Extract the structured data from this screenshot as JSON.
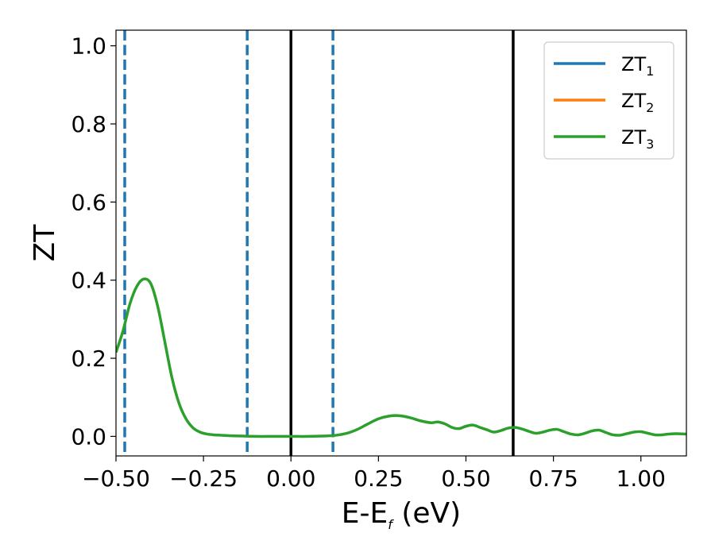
{
  "chart_data": {
    "type": "line",
    "xlabel_main": "E-E",
    "xlabel_sub": "f",
    "xlabel_unit": " (eV)",
    "ylabel": "ZT",
    "xlim": [
      -0.5,
      1.13
    ],
    "ylim": [
      -0.05,
      1.04
    ],
    "x_ticks": [
      -0.5,
      -0.25,
      0.0,
      0.25,
      0.5,
      0.75,
      1.0
    ],
    "x_tick_labels": [
      "−0.50",
      "−0.25",
      "0.00",
      "0.25",
      "0.50",
      "0.75",
      "1.00"
    ],
    "y_ticks": [
      0.0,
      0.2,
      0.4,
      0.6,
      0.8,
      1.0
    ],
    "y_tick_labels": [
      "0.0",
      "0.2",
      "0.4",
      "0.6",
      "0.8",
      "1.0"
    ],
    "grid": false,
    "legend_position": "top-right",
    "legend": [
      {
        "base": "ZT",
        "sub": "1",
        "color": "#1f77b4"
      },
      {
        "base": "ZT",
        "sub": "2",
        "color": "#ff7f0e"
      },
      {
        "base": "ZT",
        "sub": "3",
        "color": "#2ca02c"
      }
    ],
    "vlines_dashed": {
      "color": "#1f77b4",
      "x": [
        -0.475,
        -0.125,
        0.12
      ]
    },
    "vlines_solid": {
      "color": "#000000",
      "x": [
        0.0,
        0.635
      ]
    },
    "series": [
      {
        "color": "#2ca02c",
        "x": [
          -0.5,
          -0.48,
          -0.46,
          -0.44,
          -0.42,
          -0.4,
          -0.38,
          -0.36,
          -0.34,
          -0.32,
          -0.3,
          -0.28,
          -0.26,
          -0.24,
          -0.22,
          -0.2,
          -0.18,
          -0.15,
          -0.1,
          -0.05,
          0.0,
          0.05,
          0.1,
          0.13,
          0.16,
          0.19,
          0.22,
          0.25,
          0.28,
          0.31,
          0.34,
          0.37,
          0.4,
          0.42,
          0.44,
          0.46,
          0.48,
          0.5,
          0.52,
          0.54,
          0.56,
          0.58,
          0.6,
          0.62,
          0.64,
          0.66,
          0.68,
          0.7,
          0.72,
          0.74,
          0.76,
          0.78,
          0.8,
          0.82,
          0.84,
          0.86,
          0.88,
          0.9,
          0.92,
          0.94,
          0.96,
          0.98,
          1.0,
          1.02,
          1.04,
          1.06,
          1.08,
          1.1,
          1.13
        ],
        "y": [
          0.215,
          0.27,
          0.34,
          0.385,
          0.403,
          0.39,
          0.33,
          0.24,
          0.15,
          0.085,
          0.045,
          0.022,
          0.011,
          0.006,
          0.004,
          0.003,
          0.002,
          0.001,
          0.0,
          0.0,
          0.0,
          0.0,
          0.001,
          0.003,
          0.008,
          0.018,
          0.032,
          0.045,
          0.052,
          0.053,
          0.048,
          0.04,
          0.035,
          0.037,
          0.032,
          0.023,
          0.02,
          0.026,
          0.029,
          0.023,
          0.017,
          0.011,
          0.015,
          0.021,
          0.023,
          0.019,
          0.013,
          0.008,
          0.011,
          0.016,
          0.018,
          0.012,
          0.006,
          0.004,
          0.008,
          0.014,
          0.016,
          0.01,
          0.004,
          0.003,
          0.007,
          0.011,
          0.012,
          0.008,
          0.004,
          0.004,
          0.006,
          0.007,
          0.006
        ]
      }
    ]
  }
}
